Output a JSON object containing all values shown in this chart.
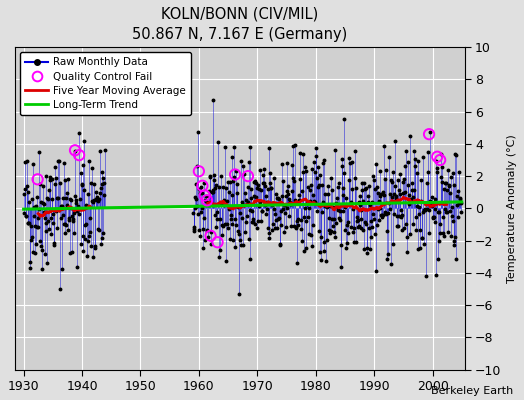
{
  "title": "KOLN/BONN (CIV/MIL)",
  "subtitle": "50.867 N, 7.167 E (Germany)",
  "ylabel": "Temperature Anomaly (°C)",
  "credit": "Berkeley Earth",
  "ylim": [
    -10,
    10
  ],
  "xlim": [
    1928.5,
    2005.5
  ],
  "yticks": [
    -10,
    -8,
    -6,
    -4,
    -2,
    0,
    2,
    4,
    6,
    8,
    10
  ],
  "xticks": [
    1930,
    1940,
    1950,
    1960,
    1970,
    1980,
    1990,
    2000
  ],
  "bg_color": "#e0e0e0",
  "plot_bg_color": "#d0d0d0",
  "grid_color": "#ffffff",
  "raw_line_color": "#0000dd",
  "raw_dot_color": "#000000",
  "ma_color": "#dd0000",
  "trend_color": "#00cc00",
  "qc_color": "#ff00ff",
  "seed": 42,
  "period1_start": 1930,
  "period1_end": 1943,
  "period2_start": 1959,
  "period2_end": 2004,
  "trend_slope": 0.006,
  "trend_intercept": -0.05
}
